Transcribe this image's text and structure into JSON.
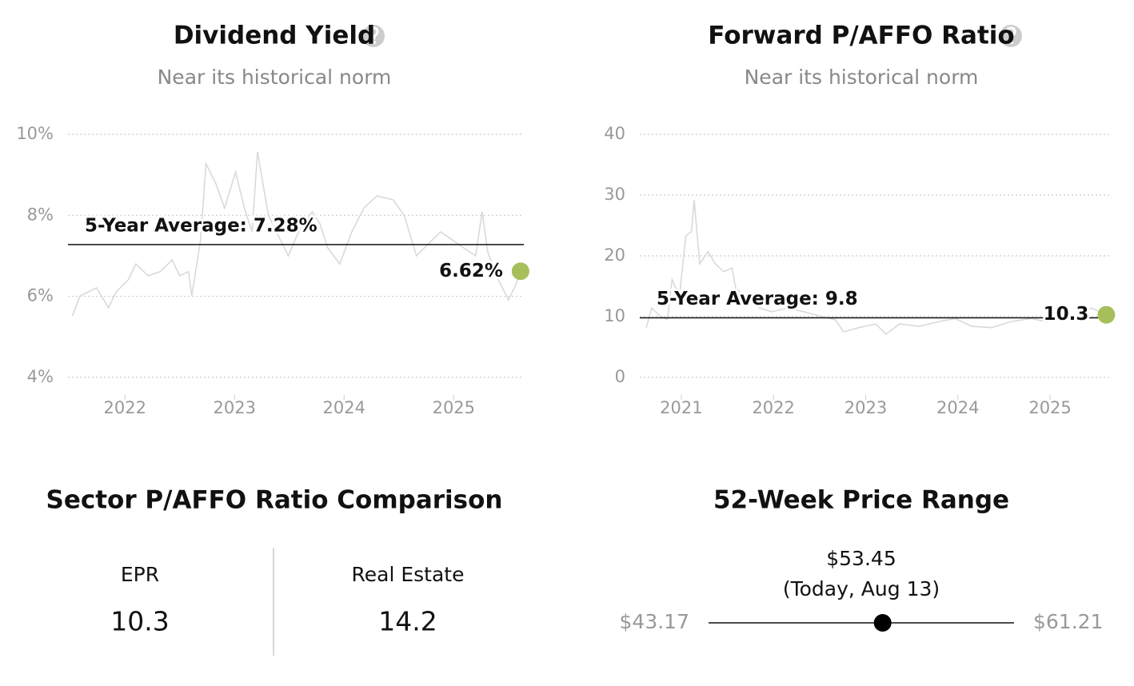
{
  "chart_data": [
    {
      "type": "line",
      "title": "Dividend Yield",
      "subtitle": "Near its historical norm",
      "color": "#d9d9d9",
      "x": [
        2021.52,
        2021.59,
        2021.74,
        2021.85,
        2021.92,
        2022.03,
        2022.1,
        2022.21,
        2022.32,
        2022.43,
        2022.5,
        2022.58,
        2022.61,
        2022.69,
        2022.74,
        2022.83,
        2022.91,
        2023.01,
        2023.09,
        2023.16,
        2023.21,
        2023.31,
        2023.42,
        2023.49,
        2023.6,
        2023.71,
        2023.78,
        2023.85,
        2023.96,
        2024.07,
        2024.18,
        2024.3,
        2024.45,
        2024.55,
        2024.66,
        2024.77,
        2024.88,
        2024.99,
        2025.09,
        2025.2,
        2025.26,
        2025.31,
        2025.39,
        2025.5,
        2025.57,
        2025.61
      ],
      "values": [
        5.52,
        6.01,
        6.21,
        5.72,
        6.11,
        6.41,
        6.8,
        6.51,
        6.61,
        6.9,
        6.51,
        6.61,
        6.01,
        7.39,
        9.27,
        8.78,
        8.18,
        9.07,
        8.18,
        7.59,
        9.57,
        7.99,
        7.39,
        7.0,
        7.69,
        8.09,
        7.79,
        7.2,
        6.8,
        7.59,
        8.18,
        8.48,
        8.38,
        7.99,
        7.0,
        7.3,
        7.59,
        7.39,
        7.2,
        7.0,
        8.09,
        7.1,
        6.51,
        5.91,
        6.31,
        6.62
      ],
      "xlim": [
        2021.48,
        2025.64
      ],
      "xticks": [
        2022,
        2023,
        2024,
        2025
      ],
      "ylim": [
        4,
        10
      ],
      "yticks": [
        {
          "value": 4,
          "label": "4%"
        },
        {
          "value": 6,
          "label": "6%"
        },
        {
          "value": 8,
          "label": "8%"
        },
        {
          "value": 10,
          "label": "10%"
        }
      ],
      "grid": true,
      "average": {
        "value": 7.28,
        "label": "5-Year Average: 7.28%"
      },
      "current": {
        "x": 2025.61,
        "value": 6.62,
        "label": "6.62%",
        "color": "#a6bf5a"
      }
    },
    {
      "type": "line",
      "title": "Forward P/AFFO Ratio",
      "subtitle": "Near its historical norm",
      "color": "#d9d9d9",
      "x": [
        2020.62,
        2020.68,
        2020.77,
        2020.85,
        2020.9,
        2020.98,
        2021.05,
        2021.11,
        2021.14,
        2021.2,
        2021.29,
        2021.37,
        2021.46,
        2021.55,
        2021.59,
        2021.72,
        2021.85,
        2021.98,
        2022.15,
        2022.33,
        2022.5,
        2022.67,
        2022.76,
        2022.93,
        2023.11,
        2023.22,
        2023.37,
        2023.58,
        2023.8,
        2023.97,
        2024.15,
        2024.37,
        2024.58,
        2024.8,
        2024.97,
        2025.23,
        2025.45,
        2025.61
      ],
      "values": [
        8.2,
        11.4,
        10.1,
        9.5,
        16.1,
        13.4,
        23.3,
        24.0,
        29.2,
        18.7,
        20.7,
        18.7,
        17.4,
        18.0,
        14.7,
        12.8,
        11.4,
        10.8,
        11.4,
        10.8,
        10.1,
        9.5,
        7.5,
        8.2,
        8.8,
        7.1,
        8.8,
        8.4,
        9.2,
        9.7,
        8.4,
        8.2,
        9.2,
        9.7,
        9.1,
        10.1,
        11.4,
        10.3
      ],
      "xlim": [
        2020.55,
        2025.65
      ],
      "xticks": [
        2021,
        2022,
        2023,
        2024,
        2025
      ],
      "ylim": [
        0,
        40
      ],
      "yticks": [
        0,
        10,
        20,
        30,
        40
      ],
      "grid": true,
      "average": {
        "value": 9.8,
        "label": "5-Year Average: 9.8"
      },
      "current": {
        "x": 2025.61,
        "value": 10.3,
        "label": "10.3",
        "color": "#a6bf5a"
      }
    },
    {
      "type": "range",
      "title": "52-Week Price Range",
      "color": "#000000",
      "xlim": [
        43.17,
        61.21
      ],
      "xticks": [
        {
          "value": 43.17,
          "label": "$43.17"
        },
        {
          "value": 61.21,
          "label": "$61.21"
        }
      ],
      "values": [
        53.45
      ],
      "value_labels": [
        "$53.45"
      ],
      "annotation": "(Today, Aug 13)"
    }
  ],
  "comparison": {
    "title": "Sector P/AFFO Ratio Comparison",
    "columns": [
      {
        "label": "EPR",
        "value": 10.3
      },
      {
        "label": "Real Estate",
        "value": 14.2
      }
    ]
  }
}
